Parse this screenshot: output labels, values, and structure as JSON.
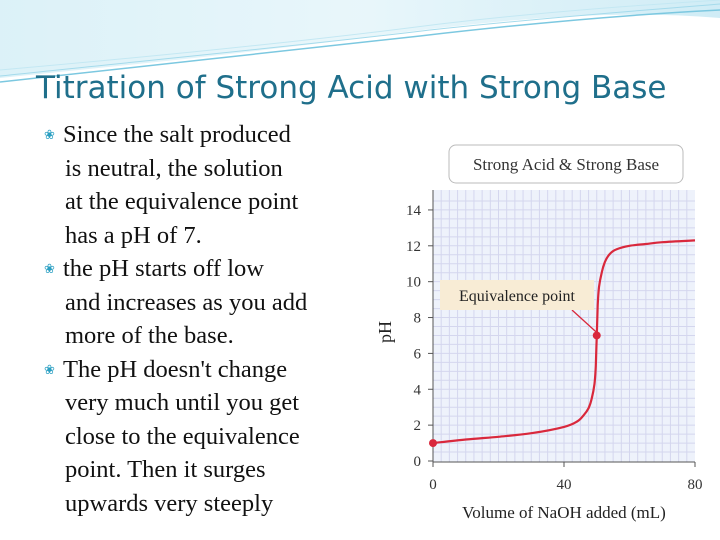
{
  "slide": {
    "title": "Titration of Strong Acid with Strong Base",
    "bullets": [
      {
        "first": "Since the salt produced",
        "rest": [
          "is neutral, the solution",
          "at the equivalence point",
          "has a pH of 7."
        ]
      },
      {
        "first": "the pH starts off low",
        "rest": [
          "and increases as you add",
          "more of the base."
        ]
      },
      {
        "first": "The pH doesn't change",
        "rest": [
          "very much until you get",
          "close to the equivalence",
          "point. Then it surges",
          "upwards very steeply"
        ]
      }
    ]
  },
  "colors": {
    "title": "#1f6f8b",
    "bullet_mark": "#2a9fc2",
    "curve": "#d9283c",
    "grid": "#d4d6ee",
    "plot_bg": "#eef2fb",
    "callout_bg": "#f8ecd5"
  },
  "chart_data": {
    "type": "line",
    "title": "Strong Acid & Strong Base",
    "xlabel": "Volume of NaOH added (mL)",
    "ylabel": "pH",
    "xlim": [
      0,
      80
    ],
    "ylim": [
      0,
      15
    ],
    "x_ticks": [
      0,
      40,
      80
    ],
    "y_ticks": [
      0,
      2,
      4,
      6,
      8,
      10,
      12,
      14
    ],
    "grid": true,
    "series": [
      {
        "x": [
          0,
          10,
          20,
          30,
          40,
          44,
          46,
          47.5,
          48.5,
          49.3,
          49.7,
          50,
          50.3,
          50.7,
          51.5,
          52.5,
          54,
          56,
          60,
          65,
          70,
          80
        ],
        "y": [
          1.0,
          1.2,
          1.35,
          1.55,
          1.9,
          2.2,
          2.55,
          2.95,
          3.5,
          4.3,
          5.3,
          7.0,
          8.7,
          9.7,
          10.5,
          11.1,
          11.55,
          11.8,
          12.0,
          12.1,
          12.2,
          12.3
        ]
      }
    ],
    "highlighted_points": [
      {
        "x": 0,
        "y": 1.0
      },
      {
        "x": 50,
        "y": 7.0
      }
    ],
    "annotations": [
      {
        "text": "Equivalence point",
        "x": 50,
        "y": 7.0
      }
    ]
  }
}
